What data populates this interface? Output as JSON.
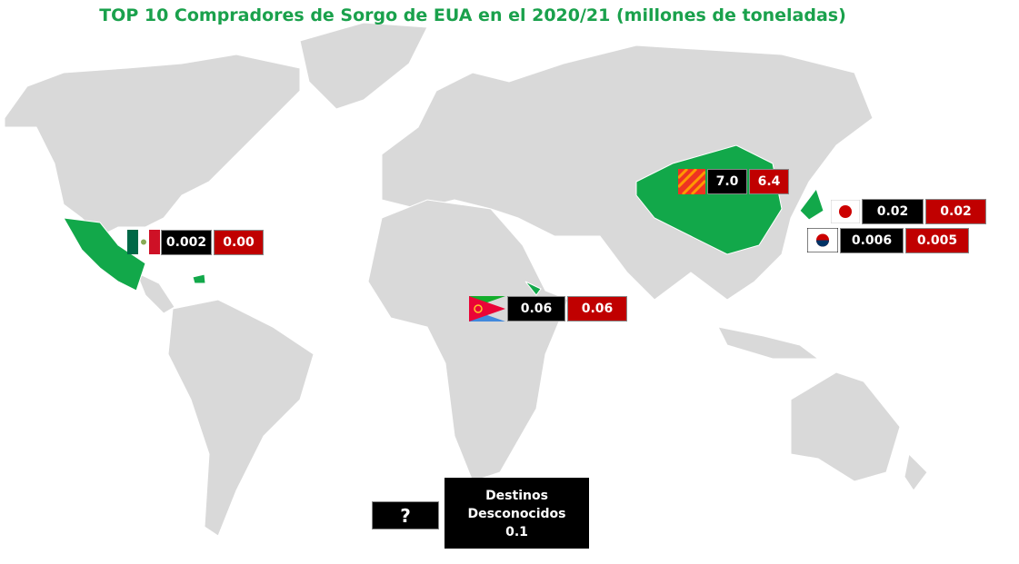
{
  "title": "TOP 10 Compradores de Sorgo de EUA en el 2020/21 (millones de toneladas)",
  "callouts": [
    {
      "first": "7.0",
      "second": "6.4"
    },
    {
      "first": "0.02",
      "second": "0.02"
    },
    {
      "first": "0.006",
      "second": "0.005"
    },
    {
      "first": "0.002",
      "second": "0.00"
    },
    {
      "first": "0.06",
      "second": "0.06"
    }
  ],
  "unknown": {
    "mark": "?",
    "label": "Destinos Desconocidos",
    "value": "0.1"
  }
}
